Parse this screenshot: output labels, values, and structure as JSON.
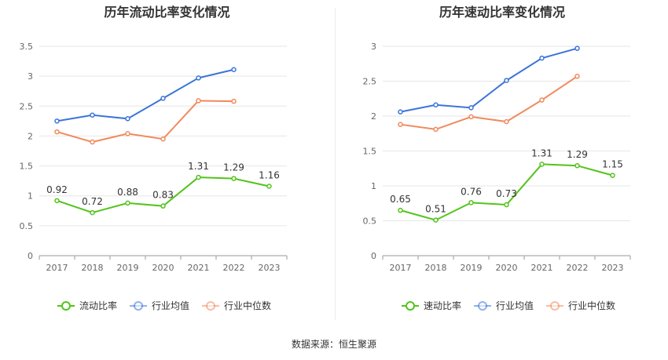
{
  "source_label": "数据来源：恒生聚源",
  "chart_data": [
    {
      "type": "line",
      "title": "历年流动比率变化情况",
      "categories": [
        "2017",
        "2018",
        "2019",
        "2020",
        "2021",
        "2022",
        "2023"
      ],
      "y_ticks": [
        "0",
        "0.5",
        "1",
        "1.5",
        "2",
        "2.5",
        "3",
        "3.5"
      ],
      "ylim": [
        0,
        3.5
      ],
      "grid": true,
      "legend_position": "bottom",
      "series": [
        {
          "name": "流动比率",
          "color": "#52c41a",
          "values": [
            0.92,
            0.72,
            0.88,
            0.83,
            1.31,
            1.29,
            1.16
          ],
          "labels": [
            "0.92",
            "0.72",
            "0.88",
            "0.83",
            "1.31",
            "1.29",
            "1.16"
          ]
        },
        {
          "name": "行业均值",
          "color": "#3a75d8",
          "values": [
            2.25,
            2.35,
            2.29,
            2.63,
            2.97,
            3.11,
            null
          ]
        },
        {
          "name": "行业中位数",
          "color": "#f08a5d",
          "values": [
            2.07,
            1.9,
            2.04,
            1.95,
            2.59,
            2.58,
            null
          ]
        }
      ]
    },
    {
      "type": "line",
      "title": "历年速动比率变化情况",
      "categories": [
        "2017",
        "2018",
        "2019",
        "2020",
        "2021",
        "2022",
        "2023"
      ],
      "y_ticks": [
        "0",
        "0.5",
        "1",
        "1.5",
        "2",
        "2.5",
        "3"
      ],
      "ylim": [
        0,
        3
      ],
      "grid": true,
      "legend_position": "bottom",
      "series": [
        {
          "name": "速动比率",
          "color": "#52c41a",
          "values": [
            0.65,
            0.51,
            0.76,
            0.73,
            1.31,
            1.29,
            1.15
          ],
          "labels": [
            "0.65",
            "0.51",
            "0.76",
            "0.73",
            "1.31",
            "1.29",
            "1.15"
          ]
        },
        {
          "name": "行业均值",
          "color": "#3a75d8",
          "values": [
            2.06,
            2.16,
            2.12,
            2.51,
            2.83,
            2.97,
            null
          ]
        },
        {
          "name": "行业中位数",
          "color": "#f08a5d",
          "values": [
            1.88,
            1.81,
            1.99,
            1.92,
            2.23,
            2.57,
            null
          ]
        }
      ]
    }
  ]
}
